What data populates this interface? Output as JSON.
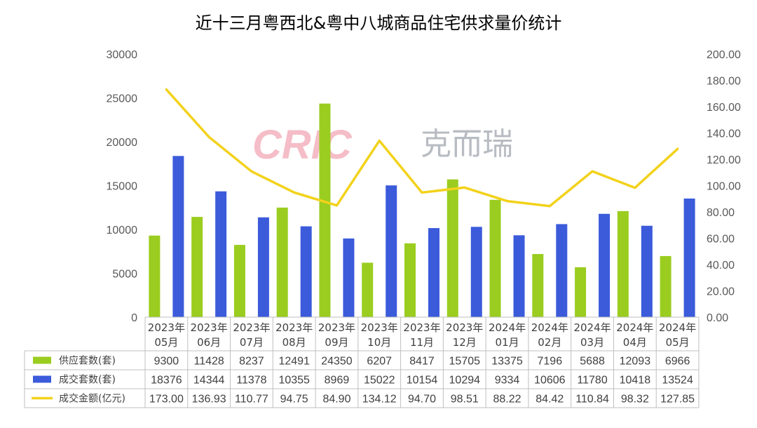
{
  "chart_data": {
    "type": "bar",
    "title": "近十三月粤西北&粤中八城商品住宅供求量价统计",
    "categories": [
      [
        "2023年",
        "05月"
      ],
      [
        "2023年",
        "06月"
      ],
      [
        "2023年",
        "07月"
      ],
      [
        "2023年",
        "08月"
      ],
      [
        "2023年",
        "09月"
      ],
      [
        "2023年",
        "10月"
      ],
      [
        "2023年",
        "11月"
      ],
      [
        "2023年",
        "12月"
      ],
      [
        "2024年",
        "01月"
      ],
      [
        "2024年",
        "02月"
      ],
      [
        "2024年",
        "03月"
      ],
      [
        "2024年",
        "04月"
      ],
      [
        "2024年",
        "05月"
      ]
    ],
    "series": [
      {
        "name": "供应套数(套)",
        "type": "bar",
        "axis": "left",
        "color": "#9ACD1F",
        "values": [
          9300,
          11428,
          8237,
          12491,
          24350,
          6207,
          8417,
          15705,
          13375,
          7196,
          5688,
          12093,
          6966
        ],
        "labels": [
          "9300",
          "11428",
          "8237",
          "12491",
          "24350",
          "6207",
          "8417",
          "15705",
          "13375",
          "7196",
          "5688",
          "12093",
          "6966"
        ]
      },
      {
        "name": "成交套数(套)",
        "type": "bar",
        "axis": "left",
        "color": "#3B5BDB",
        "values": [
          18376,
          14344,
          11378,
          10355,
          8969,
          15022,
          10154,
          10294,
          9334,
          10606,
          11780,
          10418,
          13524
        ],
        "labels": [
          "18376",
          "14344",
          "11378",
          "10355",
          "8969",
          "15022",
          "10154",
          "10294",
          "9334",
          "10606",
          "11780",
          "10418",
          "13524"
        ]
      },
      {
        "name": "成交金额(亿元)",
        "type": "line",
        "axis": "right",
        "color": "#F2D21B",
        "values": [
          173.0,
          136.93,
          110.77,
          94.75,
          84.9,
          134.12,
          94.7,
          98.51,
          88.22,
          84.42,
          110.84,
          98.32,
          127.85
        ],
        "labels": [
          "173.00",
          "136.93",
          "110.77",
          "94.75",
          "84.90",
          "134.12",
          "94.70",
          "98.51",
          "88.22",
          "84.42",
          "110.84",
          "98.32",
          "127.85"
        ]
      }
    ],
    "y_left": {
      "ylim": [
        0,
        30000
      ],
      "ticks": [
        "0",
        "5000",
        "10000",
        "15000",
        "20000",
        "25000",
        "30000"
      ]
    },
    "y_right": {
      "ylim": [
        0,
        200
      ],
      "ticks": [
        "0.00",
        "20.00",
        "40.00",
        "60.00",
        "80.00",
        "100.00",
        "120.00",
        "140.00",
        "160.00",
        "180.00",
        "200.00"
      ]
    },
    "grid": false,
    "legend": "data-table-left"
  },
  "watermark": {
    "latin": "CRIC",
    "cn": "克而瑞"
  }
}
